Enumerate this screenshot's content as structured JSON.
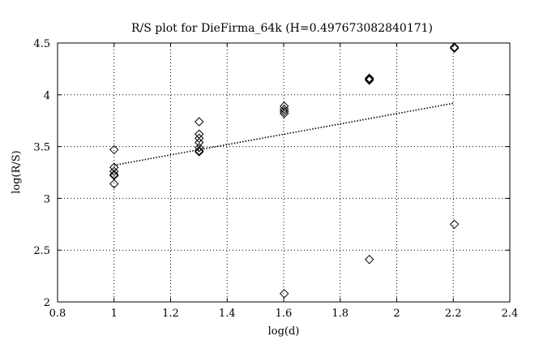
{
  "chart_data": {
    "type": "scatter",
    "title": "R/S plot for DieFirma_64k (H=0.497673082840171)",
    "xlabel": "log(d)",
    "ylabel": "log(R/S)",
    "xlim": [
      0.8,
      2.4
    ],
    "ylim": [
      2,
      4.5
    ],
    "xticks": [
      "0.8",
      "1",
      "1.2",
      "1.4",
      "1.6",
      "1.8",
      "2",
      "2.2",
      "2.4"
    ],
    "yticks": [
      "2",
      "2.5",
      "3",
      "3.5",
      "4",
      "4.5"
    ],
    "grid": true,
    "series": [
      {
        "marker": "diamond",
        "points": [
          [
            1.0,
            3.47
          ],
          [
            1.0,
            3.3
          ],
          [
            1.0,
            3.26
          ],
          [
            1.0,
            3.23
          ],
          [
            1.0,
            3.22
          ],
          [
            1.0,
            3.14
          ],
          [
            1.301,
            3.74
          ],
          [
            1.301,
            3.62
          ],
          [
            1.301,
            3.58
          ],
          [
            1.301,
            3.54
          ],
          [
            1.301,
            3.49
          ],
          [
            1.301,
            3.46
          ],
          [
            1.301,
            3.45
          ],
          [
            1.602,
            3.89
          ],
          [
            1.602,
            3.86
          ],
          [
            1.602,
            3.84
          ],
          [
            1.602,
            3.82
          ],
          [
            1.602,
            2.08
          ],
          [
            1.903,
            4.16
          ],
          [
            1.903,
            4.15
          ],
          [
            1.903,
            4.14
          ],
          [
            1.903,
            2.41
          ],
          [
            2.204,
            4.46
          ],
          [
            2.204,
            4.45
          ],
          [
            2.204,
            2.75
          ]
        ]
      }
    ],
    "fit_line": {
      "style": "dotted",
      "x": [
        1.0,
        2.204
      ],
      "y": [
        3.32,
        3.92
      ]
    }
  }
}
